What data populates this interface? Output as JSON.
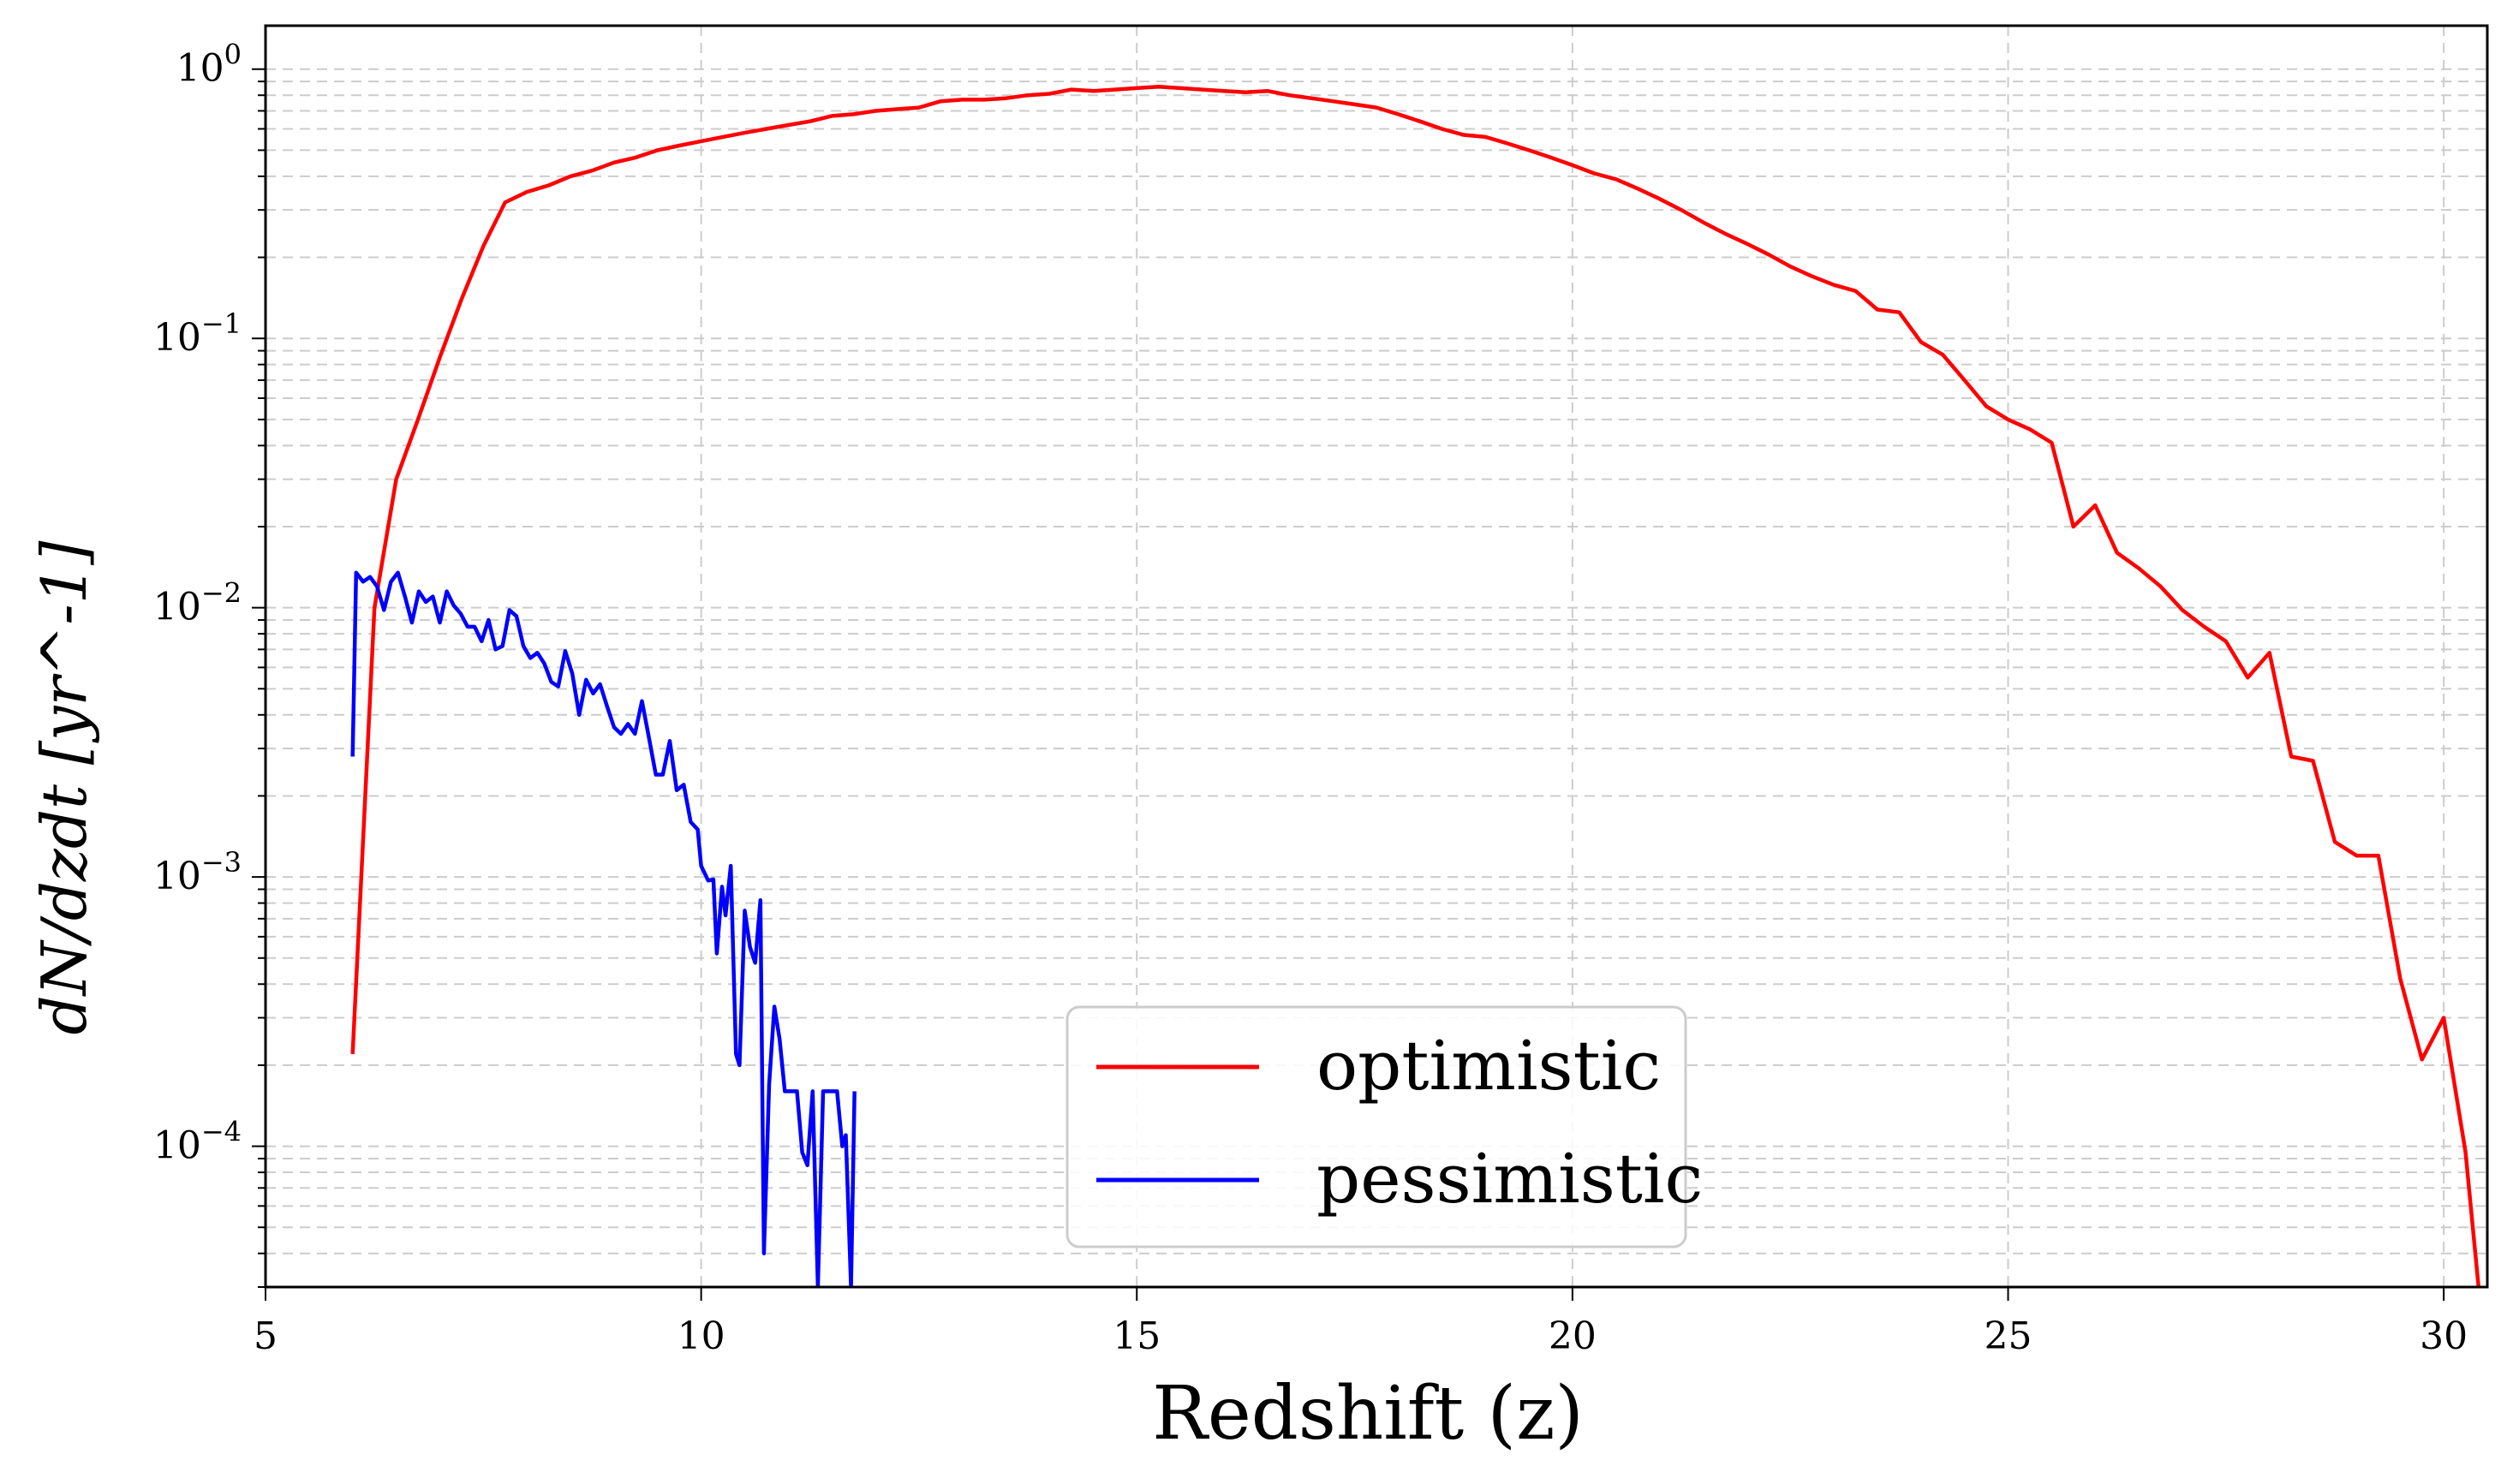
{
  "chart_data": {
    "type": "line",
    "xlabel": "Redshift (z)",
    "ylabel": "dN/dzdt [yr^-1]",
    "xlim": [
      5,
      30.5
    ],
    "ylim": [
      3e-05,
      1.45
    ],
    "yscale": "log",
    "grid": true,
    "legend": {
      "placement": "lower-center"
    },
    "x_ticks": [
      5,
      10,
      15,
      20,
      25,
      30
    ],
    "y_ticks": [
      {
        "value": 0.0001,
        "base": "10",
        "exp": "−4"
      },
      {
        "value": 0.001,
        "base": "10",
        "exp": "−3"
      },
      {
        "value": 0.01,
        "base": "10",
        "exp": "−2"
      },
      {
        "value": 0.1,
        "base": "10",
        "exp": "−1"
      },
      {
        "value": 1,
        "base": "10",
        "exp": "0"
      }
    ],
    "series": [
      {
        "name": "optimistic",
        "color": "#ff0000",
        "points": [
          [
            6.0,
            0.00022
          ],
          [
            6.25,
            0.01
          ],
          [
            6.5,
            0.03
          ],
          [
            6.75,
            0.05
          ],
          [
            7.0,
            0.085
          ],
          [
            7.25,
            0.14
          ],
          [
            7.5,
            0.22
          ],
          [
            7.75,
            0.32
          ],
          [
            8.0,
            0.35
          ],
          [
            8.25,
            0.37
          ],
          [
            8.5,
            0.4
          ],
          [
            8.75,
            0.42
          ],
          [
            9.0,
            0.45
          ],
          [
            9.25,
            0.47
          ],
          [
            9.5,
            0.5
          ],
          [
            9.75,
            0.52
          ],
          [
            10.0,
            0.54
          ],
          [
            10.25,
            0.56
          ],
          [
            10.5,
            0.58
          ],
          [
            10.75,
            0.6
          ],
          [
            11.0,
            0.62
          ],
          [
            11.25,
            0.64
          ],
          [
            11.5,
            0.67
          ],
          [
            11.75,
            0.68
          ],
          [
            12.0,
            0.7
          ],
          [
            12.25,
            0.71
          ],
          [
            12.5,
            0.72
          ],
          [
            12.75,
            0.76
          ],
          [
            13.0,
            0.77
          ],
          [
            13.25,
            0.77
          ],
          [
            13.5,
            0.78
          ],
          [
            13.75,
            0.8
          ],
          [
            14.0,
            0.81
          ],
          [
            14.25,
            0.84
          ],
          [
            14.5,
            0.83
          ],
          [
            14.75,
            0.84
          ],
          [
            15.0,
            0.85
          ],
          [
            15.25,
            0.86
          ],
          [
            15.5,
            0.85
          ],
          [
            15.75,
            0.84
          ],
          [
            16.0,
            0.83
          ],
          [
            16.25,
            0.82
          ],
          [
            16.5,
            0.83
          ],
          [
            16.75,
            0.8
          ],
          [
            17.0,
            0.78
          ],
          [
            17.25,
            0.76
          ],
          [
            17.5,
            0.74
          ],
          [
            17.75,
            0.72
          ],
          [
            18.0,
            0.68
          ],
          [
            18.25,
            0.64
          ],
          [
            18.5,
            0.6
          ],
          [
            18.75,
            0.57
          ],
          [
            19.0,
            0.56
          ],
          [
            19.25,
            0.53
          ],
          [
            19.5,
            0.5
          ],
          [
            19.75,
            0.47
          ],
          [
            20.0,
            0.44
          ],
          [
            20.25,
            0.41
          ],
          [
            20.5,
            0.39
          ],
          [
            20.75,
            0.36
          ],
          [
            21.0,
            0.33
          ],
          [
            21.25,
            0.3
          ],
          [
            21.5,
            0.27
          ],
          [
            21.75,
            0.245
          ],
          [
            22.0,
            0.225
          ],
          [
            22.25,
            0.205
          ],
          [
            22.5,
            0.185
          ],
          [
            22.75,
            0.17
          ],
          [
            23.0,
            0.158
          ],
          [
            23.25,
            0.15
          ],
          [
            23.5,
            0.128
          ],
          [
            23.75,
            0.125
          ],
          [
            24.0,
            0.097
          ],
          [
            24.25,
            0.087
          ],
          [
            24.5,
            0.07
          ],
          [
            24.75,
            0.056
          ],
          [
            25.0,
            0.05
          ],
          [
            25.25,
            0.046
          ],
          [
            25.5,
            0.041
          ],
          [
            25.75,
            0.02
          ],
          [
            26.0,
            0.024
          ],
          [
            26.25,
            0.016
          ],
          [
            26.5,
            0.014
          ],
          [
            26.75,
            0.012
          ],
          [
            27.0,
            0.0098
          ],
          [
            27.25,
            0.0085
          ],
          [
            27.5,
            0.0075
          ],
          [
            27.75,
            0.0055
          ],
          [
            28.0,
            0.0068
          ],
          [
            28.25,
            0.0028
          ],
          [
            28.5,
            0.0027
          ],
          [
            28.75,
            0.00135
          ],
          [
            29.0,
            0.0012
          ],
          [
            29.25,
            0.0012
          ],
          [
            29.5,
            0.00042
          ],
          [
            29.75,
            0.00021
          ],
          [
            30.0,
            0.0003
          ],
          [
            30.25,
            9.5e-05
          ],
          [
            30.4,
            3e-05
          ]
        ]
      },
      {
        "name": "pessimistic",
        "color": "#0000ff",
        "points": [
          [
            6.0,
            0.0028
          ],
          [
            6.04,
            0.0135
          ],
          [
            6.12,
            0.0125
          ],
          [
            6.2,
            0.013
          ],
          [
            6.28,
            0.012
          ],
          [
            6.36,
            0.0098
          ],
          [
            6.44,
            0.0125
          ],
          [
            6.52,
            0.0135
          ],
          [
            6.6,
            0.011
          ],
          [
            6.68,
            0.0088
          ],
          [
            6.76,
            0.0115
          ],
          [
            6.84,
            0.0105
          ],
          [
            6.92,
            0.011
          ],
          [
            7.0,
            0.0088
          ],
          [
            7.08,
            0.0115
          ],
          [
            7.16,
            0.0102
          ],
          [
            7.24,
            0.0095
          ],
          [
            7.32,
            0.0085
          ],
          [
            7.4,
            0.0085
          ],
          [
            7.48,
            0.0075
          ],
          [
            7.56,
            0.009
          ],
          [
            7.64,
            0.007
          ],
          [
            7.72,
            0.0072
          ],
          [
            7.8,
            0.0098
          ],
          [
            7.88,
            0.0093
          ],
          [
            7.96,
            0.0072
          ],
          [
            8.04,
            0.0065
          ],
          [
            8.12,
            0.0068
          ],
          [
            8.2,
            0.0062
          ],
          [
            8.28,
            0.0053
          ],
          [
            8.36,
            0.0051
          ],
          [
            8.44,
            0.0069
          ],
          [
            8.52,
            0.0057
          ],
          [
            8.6,
            0.004
          ],
          [
            8.68,
            0.0054
          ],
          [
            8.76,
            0.0048
          ],
          [
            8.84,
            0.0052
          ],
          [
            8.92,
            0.0043
          ],
          [
            9.0,
            0.0036
          ],
          [
            9.08,
            0.0034
          ],
          [
            9.16,
            0.0037
          ],
          [
            9.24,
            0.0034
          ],
          [
            9.32,
            0.0045
          ],
          [
            9.4,
            0.0033
          ],
          [
            9.48,
            0.0024
          ],
          [
            9.56,
            0.0024
          ],
          [
            9.64,
            0.0032
          ],
          [
            9.72,
            0.0021
          ],
          [
            9.8,
            0.0022
          ],
          [
            9.88,
            0.0016
          ],
          [
            9.96,
            0.0015
          ],
          [
            10.0,
            0.0011
          ],
          [
            10.08,
            0.00097
          ],
          [
            10.14,
            0.00098
          ],
          [
            10.18,
            0.00052
          ],
          [
            10.24,
            0.00092
          ],
          [
            10.28,
            0.00072
          ],
          [
            10.34,
            0.0011
          ],
          [
            10.4,
            0.00022
          ],
          [
            10.44,
            0.0002
          ],
          [
            10.5,
            0.00075
          ],
          [
            10.56,
            0.00055
          ],
          [
            10.62,
            0.00048
          ],
          [
            10.68,
            0.00082
          ],
          [
            10.72,
            4e-05
          ],
          [
            10.78,
            0.00017
          ],
          [
            10.84,
            0.00033
          ],
          [
            10.9,
            0.00025
          ],
          [
            10.96,
            0.00016
          ],
          [
            11.02,
            0.00016
          ],
          [
            11.1,
            0.00016
          ],
          [
            11.16,
            9.5e-05
          ],
          [
            11.22,
            8.5e-05
          ],
          [
            11.28,
            0.00016
          ],
          [
            11.34,
            3e-05
          ],
          [
            11.4,
            0.00016
          ],
          [
            11.48,
            0.00016
          ],
          [
            11.56,
            0.00016
          ],
          [
            11.62,
            0.0001
          ],
          [
            11.66,
            0.00011
          ],
          [
            11.72,
            3e-05
          ],
          [
            11.76,
            0.00016
          ]
        ]
      }
    ]
  }
}
